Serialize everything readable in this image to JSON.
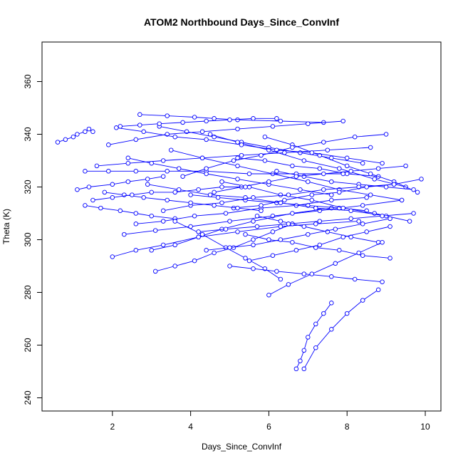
{
  "chart_data": {
    "type": "line",
    "title": "ATOM2 Northbound Days_Since_ConvInf",
    "xlabel": "Days_Since_ConvInf",
    "ylabel": "Theta (K)",
    "xlim": [
      0.2,
      10.4
    ],
    "ylim": [
      235,
      375
    ],
    "xticks": [
      2,
      4,
      6,
      8,
      10
    ],
    "yticks": [
      240,
      260,
      280,
      300,
      320,
      340,
      360
    ],
    "grid": false,
    "markers": "open-circle",
    "colors": {
      "series": "#0000ff",
      "axes": "#000000"
    },
    "series": [
      {
        "x": [
          0.6,
          0.8,
          1.0,
          1.1,
          1.3,
          1.4,
          1.5
        ],
        "y": [
          337,
          338,
          339,
          340,
          341,
          342,
          341
        ]
      },
      {
        "x": [
          1.1,
          1.4,
          2.0,
          2.4,
          2.9,
          3.3
        ],
        "y": [
          319,
          320,
          321,
          322,
          323,
          324
        ]
      },
      {
        "x": [
          1.3,
          1.7,
          2.2,
          2.6,
          3.0,
          3.6
        ],
        "y": [
          313,
          312,
          311,
          310,
          309,
          308
        ]
      },
      {
        "x": [
          2.0,
          2.6,
          3.3,
          4.2,
          5.2,
          6.3,
          7.2,
          8.3
        ],
        "y": [
          293.5,
          296,
          298,
          301,
          303,
          305,
          306,
          307
        ]
      },
      {
        "x": [
          2.3,
          3.1,
          4.0,
          5.0,
          6.1,
          7.3,
          8.4,
          9.4
        ],
        "y": [
          302,
          303.5,
          305,
          307,
          309,
          311,
          313,
          315
        ]
      },
      {
        "x": [
          2.7,
          3.4,
          4.1,
          4.6,
          5.2,
          6.3,
          7.4
        ],
        "y": [
          347.5,
          347,
          346.5,
          346,
          345.5,
          345,
          344.5
        ]
      },
      {
        "x": [
          3.0,
          3.6,
          4.2,
          4.8,
          5.6,
          6.6,
          7.6
        ],
        "y": [
          296,
          298,
          301,
          304,
          307,
          310,
          312
        ]
      },
      {
        "x": [
          3.2,
          3.9,
          4.6,
          5.3,
          6.0,
          6.8,
          7.6,
          8.4
        ],
        "y": [
          343,
          341,
          339,
          337,
          335,
          333,
          331,
          329
        ]
      },
      {
        "x": [
          3.5,
          4.3,
          5.2,
          6.1,
          7.0,
          7.8,
          8.6,
          9.4
        ],
        "y": [
          334,
          331,
          328,
          325,
          322,
          319,
          317,
          315
        ]
      },
      {
        "x": [
          3.6,
          4.3,
          4.9,
          5.4,
          5.9,
          6.3
        ],
        "y": [
          307,
          302,
          297,
          293,
          289,
          285
        ]
      },
      {
        "x": [
          4.0,
          4.7,
          5.4,
          6.2,
          7.0,
          7.8,
          8.5
        ],
        "y": [
          317,
          316,
          315,
          314,
          313,
          312,
          311
        ]
      },
      {
        "x": [
          4.5,
          5.2,
          6.0,
          6.9,
          7.8,
          8.7,
          9.5
        ],
        "y": [
          340,
          337,
          334,
          330,
          327,
          323,
          320
        ]
      },
      {
        "x": [
          4.8,
          5.5,
          6.3,
          7.1,
          7.9,
          8.7,
          9.6
        ],
        "y": [
          322,
          320,
          317,
          315,
          312,
          310,
          307
        ]
      },
      {
        "x": [
          5.0,
          5.6,
          6.2,
          6.9,
          7.6,
          8.2,
          8.9
        ],
        "y": [
          290,
          289,
          288,
          287,
          286,
          285,
          284
        ]
      },
      {
        "x": [
          5.2,
          5.9,
          6.6,
          7.3,
          8.0,
          8.8
        ],
        "y": [
          331,
          330,
          328,
          327,
          325,
          324
        ]
      },
      {
        "x": [
          5.4,
          6.0,
          6.6,
          7.2,
          7.8,
          8.4,
          9.1
        ],
        "y": [
          302,
          300,
          299,
          297,
          296,
          294,
          293
        ]
      },
      {
        "x": [
          5.7,
          6.3,
          6.9,
          7.5,
          8.1,
          8.8
        ],
        "y": [
          309,
          307,
          305,
          303,
          301,
          299
        ]
      },
      {
        "x": [
          5.9,
          6.6,
          7.3,
          8.0,
          8.6,
          9.2,
          9.8
        ],
        "y": [
          339,
          336,
          332,
          328,
          325,
          322,
          318
        ]
      },
      {
        "x": [
          6.0,
          6.5,
          7.1,
          7.7,
          8.3,
          8.9
        ],
        "y": [
          279,
          283,
          287,
          291,
          295,
          299
        ]
      },
      {
        "x": [
          6.2,
          6.9,
          7.6,
          8.3,
          9.0,
          9.7
        ],
        "y": [
          326,
          324,
          322,
          321,
          320,
          319
        ]
      },
      {
        "x": [
          6.7,
          6.8,
          6.9,
          7.0,
          7.2,
          7.4,
          7.6
        ],
        "y": [
          251,
          254,
          258,
          263,
          268,
          272,
          276
        ]
      },
      {
        "x": [
          6.9,
          7.2,
          7.6,
          8.0,
          8.4,
          8.8
        ],
        "y": [
          251,
          259,
          266,
          272,
          277,
          281
        ]
      },
      {
        "x": [
          1.3,
          1.9,
          2.6,
          3.4,
          4.4,
          5.5,
          6.7,
          7.9
        ],
        "y": [
          326,
          326,
          326,
          326,
          326,
          325,
          325,
          325
        ]
      },
      {
        "x": [
          1.6,
          2.4,
          3.3,
          4.3,
          5.3,
          6.4,
          7.5,
          8.6
        ],
        "y": [
          328,
          329,
          330,
          331,
          332,
          333,
          334,
          335
        ]
      },
      {
        "x": [
          1.9,
          2.6,
          3.4,
          4.3,
          5.2,
          6.1,
          7.0,
          7.9
        ],
        "y": [
          336,
          338,
          340,
          341,
          342,
          343,
          344,
          345
        ]
      },
      {
        "x": [
          2.1,
          2.8,
          3.6,
          4.4,
          5.3,
          6.2,
          7.1,
          8.0,
          8.9
        ],
        "y": [
          342.5,
          341,
          339,
          338,
          336,
          334,
          333,
          331,
          329
        ]
      },
      {
        "x": [
          2.4,
          3.0,
          3.7,
          4.4,
          5.2,
          6.0,
          6.8,
          7.6
        ],
        "y": [
          331,
          329,
          327,
          325,
          323,
          321,
          319,
          317
        ]
      },
      {
        "x": [
          2.6,
          3.3,
          4.1,
          4.9,
          5.8,
          6.7,
          7.6,
          8.5
        ],
        "y": [
          306,
          307,
          309,
          310,
          312,
          313,
          315,
          316
        ]
      },
      {
        "x": [
          2.9,
          3.7,
          4.5,
          5.4,
          6.3,
          7.2,
          8.1,
          9.0
        ],
        "y": [
          321,
          319,
          317,
          316,
          314,
          312,
          311,
          309
        ]
      },
      {
        "x": [
          3.1,
          3.6,
          4.1,
          4.6,
          5.1,
          5.6,
          6.1,
          6.6
        ],
        "y": [
          288,
          290,
          292,
          295,
          297,
          300,
          303,
          306
        ]
      },
      {
        "x": [
          3.3,
          4.0,
          4.8,
          5.6,
          6.5,
          7.4,
          8.3,
          9.2
        ],
        "y": [
          311,
          313,
          314,
          316,
          317,
          319,
          320,
          321
        ]
      },
      {
        "x": [
          3.8,
          4.4,
          5.1,
          5.8,
          6.6,
          7.4,
          8.2,
          9.0
        ],
        "y": [
          324,
          327,
          330,
          332,
          335,
          337,
          339,
          340
        ]
      },
      {
        "x": [
          4.2,
          4.9,
          5.7,
          6.5,
          7.3,
          8.1,
          8.9,
          9.7
        ],
        "y": [
          303,
          304,
          305,
          306,
          307,
          308,
          309,
          310
        ]
      },
      {
        "x": [
          4.4,
          5.0,
          5.6,
          6.3,
          7.0,
          7.7,
          8.4,
          9.1
        ],
        "y": [
          296,
          297,
          298,
          300,
          302,
          304,
          306,
          308
        ]
      },
      {
        "x": [
          4.6,
          5.3,
          6.0,
          6.7,
          7.4,
          8.1,
          8.8,
          9.5
        ],
        "y": [
          318,
          320,
          322,
          324,
          325,
          326,
          327,
          328
        ]
      },
      {
        "x": [
          5.1,
          5.8,
          6.4,
          7.1,
          7.8,
          8.5,
          9.2,
          9.9
        ],
        "y": [
          312,
          313,
          315,
          317,
          318,
          320,
          321,
          323
        ]
      },
      {
        "x": [
          5.5,
          6.1,
          6.7,
          7.3,
          7.9,
          8.5,
          9.1
        ],
        "y": [
          292,
          294,
          296,
          298,
          301,
          303,
          305
        ]
      },
      {
        "x": [
          2.2,
          2.7,
          3.2,
          3.8,
          4.4,
          5.0,
          5.6,
          6.2
        ],
        "y": [
          343,
          343.5,
          344,
          344.5,
          345,
          345.5,
          346,
          346
        ]
      },
      {
        "x": [
          1.8,
          2.3,
          2.8,
          3.4,
          4.0,
          4.6,
          5.2,
          5.8
        ],
        "y": [
          318,
          317,
          316,
          315,
          314,
          313,
          312,
          311
        ]
      },
      {
        "x": [
          1.5,
          2.0,
          2.5,
          3.0,
          3.6,
          4.2,
          4.8,
          5.4
        ],
        "y": [
          315,
          316,
          317,
          318,
          318,
          319,
          320,
          320
        ]
      }
    ]
  }
}
